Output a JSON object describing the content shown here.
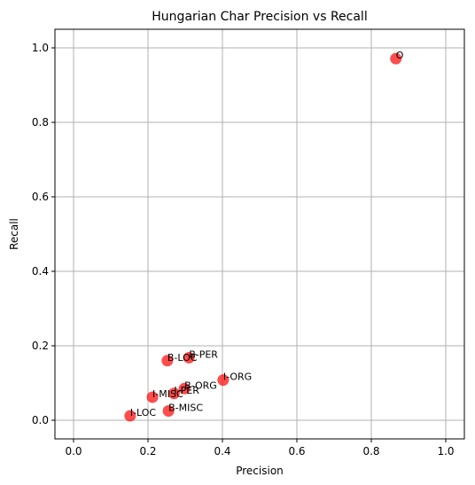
{
  "chart_data": {
    "type": "scatter",
    "title": "Hungarian Char Precision vs Recall",
    "xlabel": "Precision",
    "ylabel": "Recall",
    "xlim": [
      -0.05,
      1.05
    ],
    "ylim": [
      -0.05,
      1.05
    ],
    "xticks": [
      0.0,
      0.2,
      0.4,
      0.6,
      0.8,
      1.0
    ],
    "yticks": [
      0.0,
      0.2,
      0.4,
      0.6,
      0.8,
      1.0
    ],
    "tick_labels": [
      "0.0",
      "0.2",
      "0.4",
      "0.6",
      "0.8",
      "1.0"
    ],
    "grid": true,
    "marker_color": "#ff0000",
    "points": [
      {
        "label": "O",
        "x": 0.866,
        "y": 0.971
      },
      {
        "label": "B-PER",
        "x": 0.31,
        "y": 0.168
      },
      {
        "label": "B-LOC",
        "x": 0.252,
        "y": 0.16
      },
      {
        "label": "I-ORG",
        "x": 0.402,
        "y": 0.108
      },
      {
        "label": "B-ORG",
        "x": 0.298,
        "y": 0.085
      },
      {
        "label": "I-PER",
        "x": 0.27,
        "y": 0.072
      },
      {
        "label": "I-MISC",
        "x": 0.212,
        "y": 0.062
      },
      {
        "label": "B-MISC",
        "x": 0.255,
        "y": 0.025
      },
      {
        "label": "I-LOC",
        "x": 0.152,
        "y": 0.012
      }
    ]
  }
}
